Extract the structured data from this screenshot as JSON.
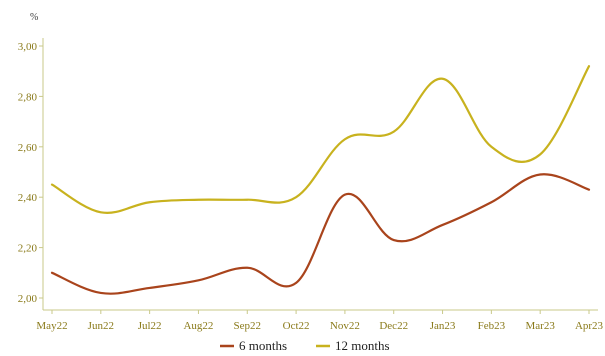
{
  "chart_data": {
    "type": "line",
    "ylabel": "%",
    "categories": [
      "May22",
      "Jun22",
      "Jul22",
      "Aug22",
      "Sep22",
      "Oct22",
      "Nov22",
      "Dec22",
      "Jan23",
      "Feb23",
      "Mar23",
      "Apr23"
    ],
    "ylim": [
      2.0,
      3.0
    ],
    "yticks": [
      "2,00",
      "2,20",
      "2,40",
      "2,60",
      "2,80",
      "3,00"
    ],
    "ytick_values": [
      2.0,
      2.2,
      2.4,
      2.6,
      2.8,
      3.0
    ],
    "grid": false,
    "legend_placement": "bottom",
    "series": [
      {
        "name": "6 months",
        "color": "#a9441c",
        "values": [
          2.1,
          2.02,
          2.04,
          2.07,
          2.12,
          2.06,
          2.41,
          2.23,
          2.29,
          2.38,
          2.49,
          2.43
        ]
      },
      {
        "name": "12 months",
        "color": "#c8b21e",
        "values": [
          2.45,
          2.34,
          2.38,
          2.39,
          2.39,
          2.4,
          2.63,
          2.66,
          2.87,
          2.6,
          2.57,
          2.92
        ]
      }
    ]
  }
}
